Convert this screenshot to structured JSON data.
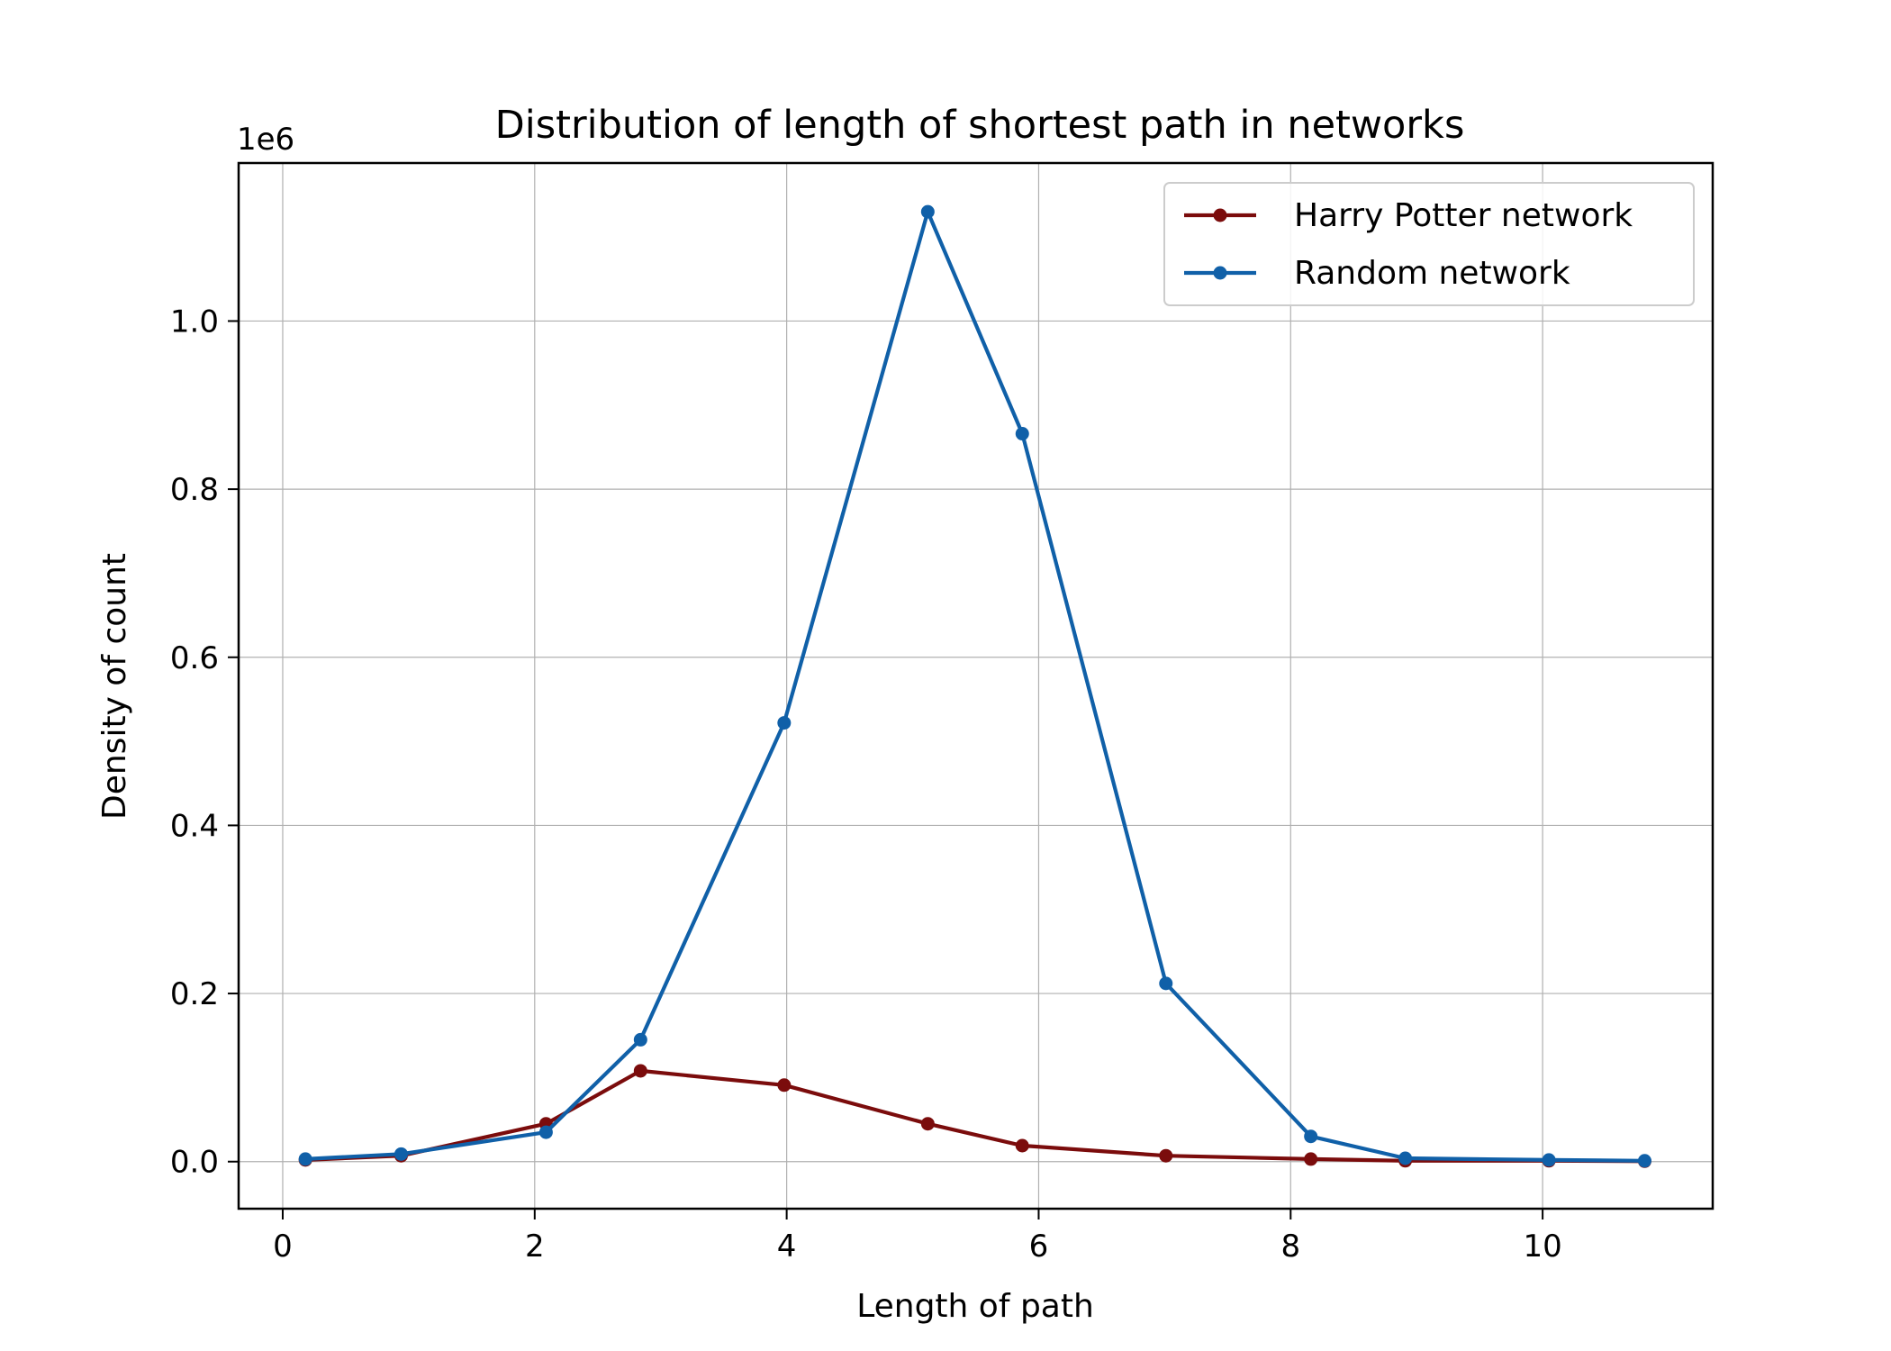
{
  "chart_data": {
    "type": "line",
    "title": "Distribution of length of shortest path in networks",
    "xlabel": "Length of path",
    "ylabel": "Density of count",
    "y_offset_label": "1e6",
    "xlim": [
      -0.35,
      11.35
    ],
    "ylim": [
      -0.056,
      1.188
    ],
    "x_ticks": [
      0,
      2,
      4,
      6,
      8,
      10
    ],
    "x_tick_labels": [
      "0",
      "2",
      "4",
      "6",
      "8",
      "10"
    ],
    "y_ticks": [
      0.0,
      0.2,
      0.4,
      0.6,
      0.8,
      1.0
    ],
    "y_tick_labels": [
      "0.0",
      "0.2",
      "0.4",
      "0.6",
      "0.8",
      "1.0"
    ],
    "grid": true,
    "legend_position": "top-right",
    "series": [
      {
        "name": "Harry Potter network",
        "color": "#7b0c0c",
        "x": [
          0.18,
          0.94,
          2.09,
          2.84,
          3.98,
          5.12,
          5.87,
          7.01,
          8.16,
          8.91,
          10.05,
          10.81
        ],
        "y": [
          0.002,
          0.007,
          0.045,
          0.108,
          0.091,
          0.045,
          0.019,
          0.007,
          0.003,
          0.001,
          0.001,
          0.0005
        ]
      },
      {
        "name": "Random network",
        "color": "#1060a8",
        "x": [
          0.18,
          0.94,
          2.09,
          2.84,
          3.98,
          5.12,
          5.87,
          7.01,
          8.16,
          8.91,
          10.05,
          10.81
        ],
        "y": [
          0.003,
          0.009,
          0.035,
          0.145,
          0.522,
          1.13,
          0.866,
          0.212,
          0.03,
          0.004,
          0.002,
          0.001
        ]
      }
    ]
  }
}
